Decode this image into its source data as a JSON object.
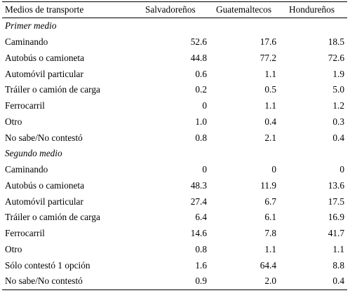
{
  "header": {
    "col0": "Medios de transporte",
    "col1": "Salvadoreños",
    "col2": "Guatemaltecos",
    "col3": "Hondureños"
  },
  "sections": [
    {
      "title": "Primer medio",
      "rows": [
        {
          "label": "Caminando",
          "sal": "52.6",
          "gua": "17.6",
          "hon": "18.5"
        },
        {
          "label": "Autobús o camioneta",
          "sal": "44.8",
          "gua": "77.2",
          "hon": "72.6"
        },
        {
          "label": "Automóvil particular",
          "sal": "0.6",
          "gua": "1.1",
          "hon": "1.9"
        },
        {
          "label": "Tráiler o camión de carga",
          "sal": "0.2",
          "gua": "0.5",
          "hon": "5.0"
        },
        {
          "label": "Ferrocarril",
          "sal": "0",
          "gua": "1.1",
          "hon": "1.2"
        },
        {
          "label": "Otro",
          "sal": "1.0",
          "gua": "0.4",
          "hon": "0.3"
        },
        {
          "label": "No sabe/No contestó",
          "sal": "0.8",
          "gua": "2.1",
          "hon": "0.4"
        }
      ]
    },
    {
      "title": "Segundo medio",
      "rows": [
        {
          "label": "Caminando",
          "sal": "0",
          "gua": "0",
          "hon": "0"
        },
        {
          "label": "Autobús o camioneta",
          "sal": "48.3",
          "gua": "11.9",
          "hon": "13.6"
        },
        {
          "label": "Automóvil particular",
          "sal": "27.4",
          "gua": "6.7",
          "hon": "17.5"
        },
        {
          "label": "Tráiler o camión de carga",
          "sal": "6.4",
          "gua": "6.1",
          "hon": "16.9"
        },
        {
          "label": "Ferrocarril",
          "sal": "14.6",
          "gua": "7.8",
          "hon": "41.7"
        },
        {
          "label": "Otro",
          "sal": "0.8",
          "gua": "1.1",
          "hon": "1.1"
        },
        {
          "label": "Sólo contestó 1 opción",
          "sal": "1.6",
          "gua": "64.4",
          "hon": "8.8"
        },
        {
          "label": "No sabe/No contestó",
          "sal": "0.9",
          "gua": "2.0",
          "hon": "0.4"
        }
      ]
    }
  ]
}
